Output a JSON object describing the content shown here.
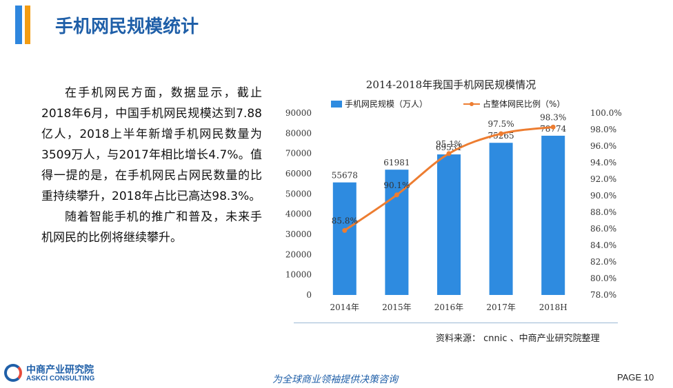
{
  "header": {
    "title": "手机网民规模统计"
  },
  "body": {
    "paragraphs": [
      "在手机网民方面，数据显示，截止2018年6月，中国手机网民规模达到7.88亿人，2018上半年新增手机网民数量为3509万人，与2017年相比增长4.7%。值得一提的是，在手机网民占网民数量的比重持续攀升，2018年占比已高达98.3%。",
      "随着智能手机的推广和普及，未来手机网民的比例将继续攀升。"
    ]
  },
  "chart_data": {
    "type": "bar",
    "title": "2014-2018年我国手机网民规模情况",
    "categories": [
      "2014年",
      "2015年",
      "2016年",
      "2017年",
      "2018H"
    ],
    "series": [
      {
        "name": "手机网民规模（万人）",
        "type": "bar",
        "axis": "left",
        "values": [
          55678,
          61981,
          69531,
          75265,
          78774
        ],
        "color": "#2e8be0"
      },
      {
        "name": "占整体网民比例（%）",
        "type": "line",
        "axis": "right",
        "values": [
          85.8,
          90.1,
          95.1,
          97.5,
          98.3
        ],
        "color": "#ed7d31"
      }
    ],
    "y_left": {
      "min": 0,
      "max": 90000,
      "step": 10000,
      "ticks": [
        "0",
        "10000",
        "20000",
        "30000",
        "40000",
        "50000",
        "60000",
        "70000",
        "80000",
        "90000"
      ]
    },
    "y_right": {
      "min": 78,
      "max": 100,
      "step": 2,
      "ticks": [
        "78.0%",
        "80.0%",
        "82.0%",
        "84.0%",
        "86.0%",
        "88.0%",
        "90.0%",
        "92.0%",
        "94.0%",
        "96.0%",
        "98.0%",
        "100.0%"
      ]
    },
    "bar_labels": [
      "55678",
      "61981",
      "69531",
      "75265",
      "78774"
    ],
    "line_labels": [
      "85.8%",
      "90.1%",
      "95.1%",
      "97.5%",
      "98.3%"
    ],
    "legend_position": "top",
    "grid": false
  },
  "footer": {
    "source": "资料来源： cnnic 、中商产业研究院整理",
    "logo_cn": "中商产业研究院",
    "logo_en": "ASKCI CONSULTING",
    "slogan": "为全球商业领袖提供决策咨询",
    "page": "PAGE  10"
  }
}
